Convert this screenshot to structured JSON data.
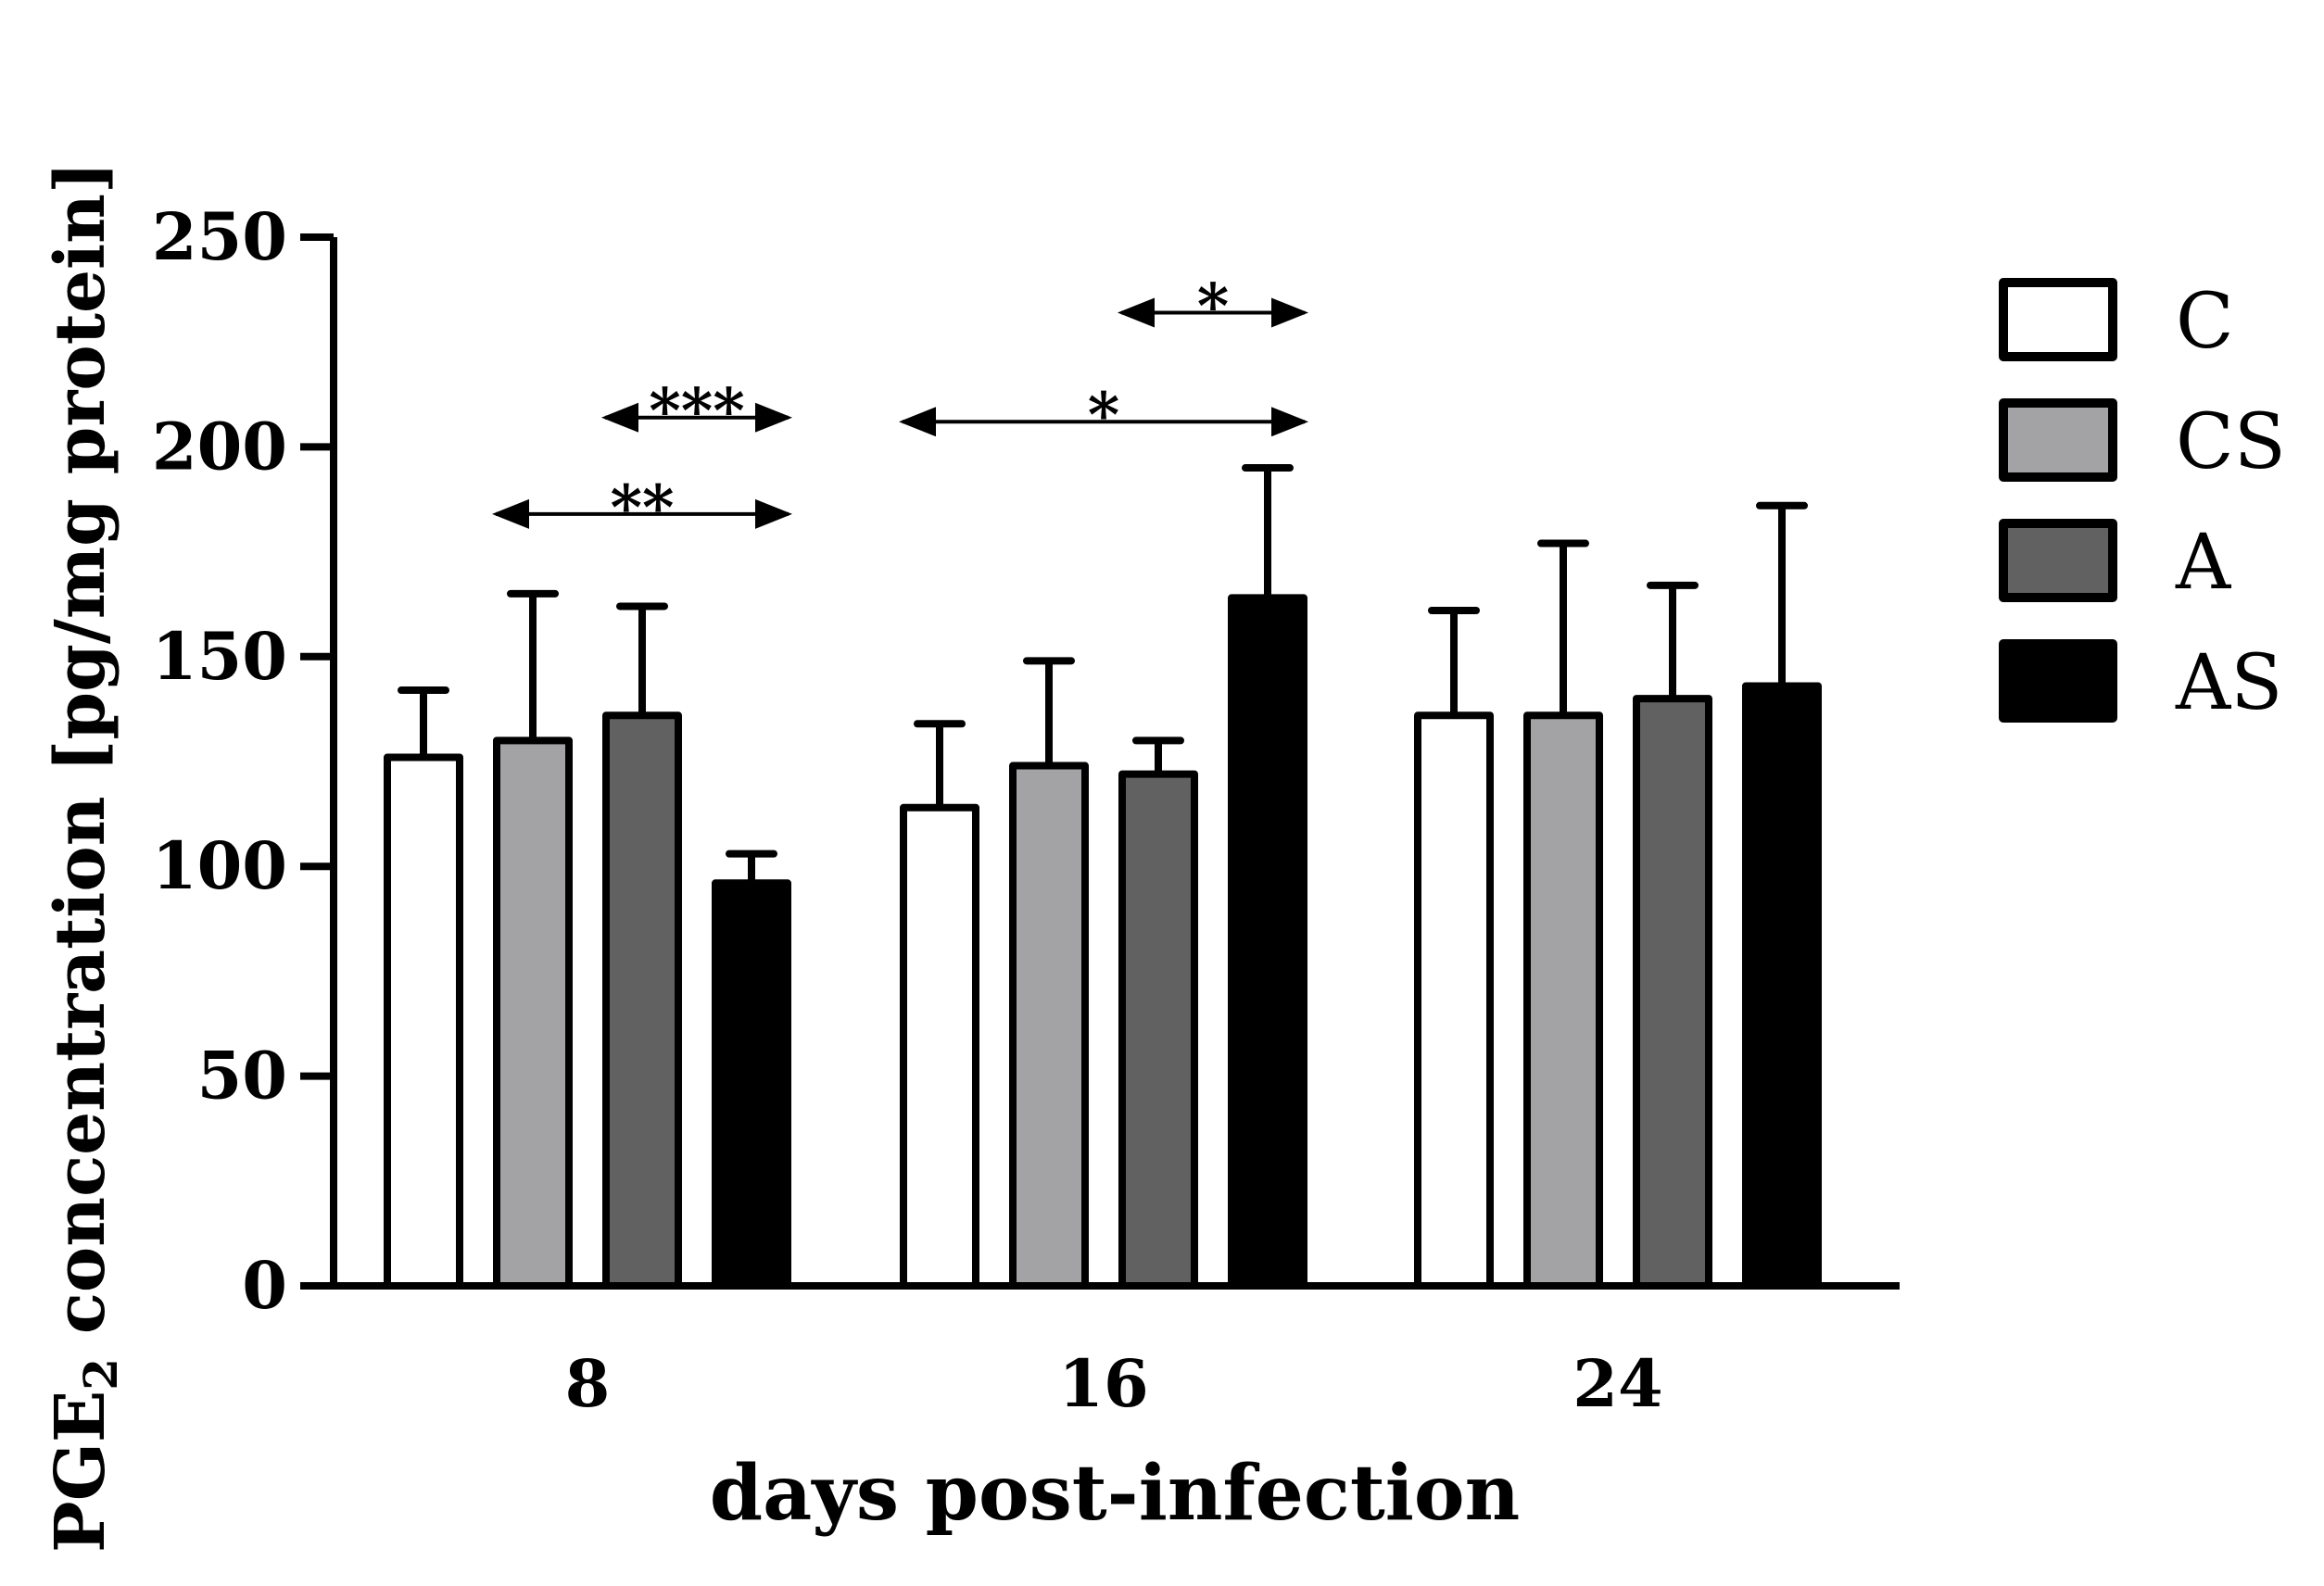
{
  "chart_data": {
    "type": "bar",
    "title": "",
    "xlabel": "days post-infection",
    "ylabel": {
      "main": "PGE",
      "subscript": "2",
      "rest": " concentration [pg/mg protein]"
    },
    "ylim": [
      0,
      250
    ],
    "yticks": [
      "0",
      "50",
      "100",
      "150",
      "200",
      "250"
    ],
    "categories": [
      "8",
      "16",
      "24"
    ],
    "series": [
      {
        "name": "C",
        "color": "#ffffff",
        "values": [
          126,
          114,
          136
        ],
        "errors": [
          16,
          20,
          25
        ]
      },
      {
        "name": "CS",
        "color": "#a3a3a6",
        "values": [
          130,
          124,
          136
        ],
        "errors": [
          35,
          25,
          41
        ]
      },
      {
        "name": "A",
        "color": "#616161",
        "values": [
          136,
          122,
          140
        ],
        "errors": [
          26,
          8,
          27
        ]
      },
      {
        "name": "AS",
        "color": "#000000",
        "values": [
          96,
          164,
          143
        ],
        "errors": [
          7,
          31,
          43
        ]
      }
    ],
    "grid": false,
    "legend": "right",
    "significance": [
      {
        "label": "**",
        "category": "8",
        "from_series": "CS",
        "to_series": "AS",
        "y": 184
      },
      {
        "label": "***",
        "category": "8",
        "from_series": "A",
        "to_series": "AS",
        "y": 207
      },
      {
        "label": "*",
        "category": "16",
        "from_series": "C",
        "to_series": "AS",
        "y": 206
      },
      {
        "label": "*",
        "category": "16",
        "from_series": "A",
        "to_series": "AS",
        "y": 232
      }
    ]
  }
}
